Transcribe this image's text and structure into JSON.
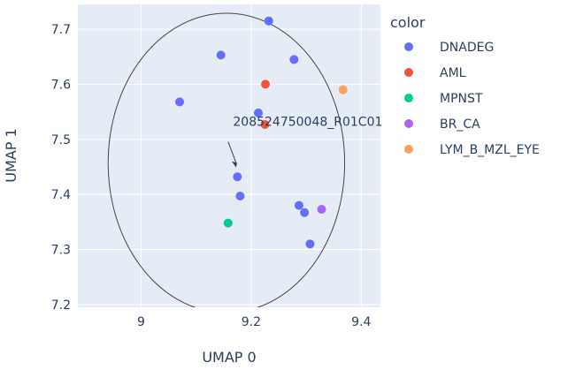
{
  "chart_data": {
    "type": "scatter",
    "xlabel": "UMAP 0",
    "ylabel": "UMAP 1",
    "xlim": [
      8.885,
      9.435
    ],
    "ylim": [
      7.195,
      7.745
    ],
    "xticks": [
      9,
      9.2,
      9.4
    ],
    "xtick_labels": [
      "9",
      "9.2",
      "9.4"
    ],
    "yticks": [
      7.2,
      7.3,
      7.4,
      7.5,
      7.6,
      7.7
    ],
    "ytick_labels": [
      "7.2",
      "7.3",
      "7.4",
      "7.5",
      "7.6",
      "7.7"
    ],
    "grid": true,
    "legend": {
      "title": "color",
      "placement": "right"
    },
    "series": [
      {
        "name": "DNADEG",
        "color": "#636efa",
        "points": [
          {
            "x": 9.232,
            "y": 7.715
          },
          {
            "x": 9.145,
            "y": 7.653
          },
          {
            "x": 9.278,
            "y": 7.645
          },
          {
            "x": 9.07,
            "y": 7.568
          },
          {
            "x": 9.213,
            "y": 7.548
          },
          {
            "x": 9.175,
            "y": 7.432
          },
          {
            "x": 9.18,
            "y": 7.397
          },
          {
            "x": 9.287,
            "y": 7.38
          },
          {
            "x": 9.297,
            "y": 7.367
          },
          {
            "x": 9.307,
            "y": 7.31
          }
        ]
      },
      {
        "name": "AML",
        "color": "#ef553b",
        "points": [
          {
            "x": 9.226,
            "y": 7.6
          },
          {
            "x": 9.225,
            "y": 7.527
          }
        ]
      },
      {
        "name": "MPNST",
        "color": "#00cc96",
        "points": [
          {
            "x": 9.158,
            "y": 7.348
          }
        ]
      },
      {
        "name": "BR_CA",
        "color": "#ab63fa",
        "points": [
          {
            "x": 9.328,
            "y": 7.373
          }
        ]
      },
      {
        "name": "LYM_B_MZL_EYE",
        "color": "#ffa15a",
        "points": [
          {
            "x": 9.367,
            "y": 7.59
          }
        ]
      }
    ],
    "annotation": {
      "text": "208524750048_R01C01",
      "x": 9.155,
      "y": 7.457
    },
    "circle_annotation": {
      "center_x": 9.155,
      "center_y": 7.457,
      "rx": 0.215,
      "ry": 0.272
    }
  },
  "style": {
    "plot_bg": "#e5ecf6",
    "grid_color": "#ffffff",
    "text_color": "#2a3f5f"
  }
}
